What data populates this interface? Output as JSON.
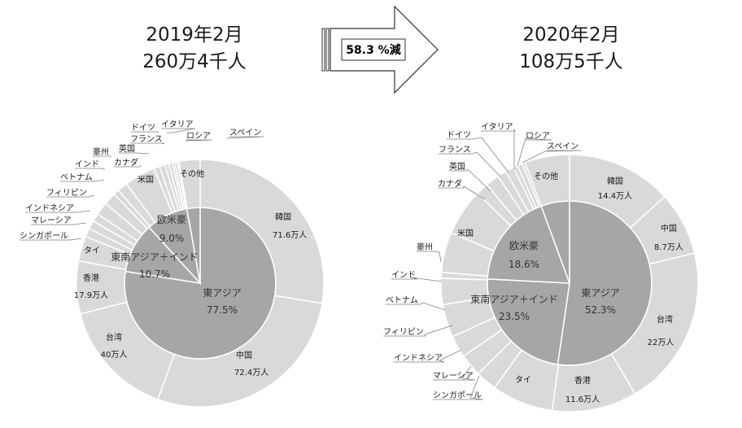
{
  "header": {
    "left_line1": "2019年2月",
    "left_line2": "260万4千人",
    "arrow_label": "58.3 %減",
    "right_line1": "2020年2月",
    "right_line2": "108万5千人"
  },
  "colors": {
    "inner_fill": "#a6a6a6",
    "outer_fill": "#d9d9d9",
    "stroke": "#ffffff",
    "leader": "#7f7f7f"
  },
  "chart_data": [
    {
      "type": "pie",
      "title": "2019年2月",
      "subtitle": "260万4千人",
      "inner": [
        {
          "label": "東アジア",
          "value": 77.5,
          "text": "77.5%"
        },
        {
          "label": "東南アジア＋インド",
          "value": 10.7,
          "text": "10.7%"
        },
        {
          "label": "欧米豪",
          "value": 9.0,
          "text": "9.0%"
        },
        {
          "label": "",
          "value": 2.8
        }
      ],
      "outer": [
        {
          "label": "韓国",
          "value": 71.6,
          "sub": "71.6万人"
        },
        {
          "label": "中国",
          "value": 72.4,
          "sub": "72.4万人"
        },
        {
          "label": "台湾",
          "value": 40.0,
          "sub": "40万人"
        },
        {
          "label": "香港",
          "value": 17.9,
          "sub": "17.9万人"
        },
        {
          "label": "タイ",
          "value": 8.5
        },
        {
          "label": "シンガポール",
          "value": 2.8
        },
        {
          "label": "マレーシア",
          "value": 2.9
        },
        {
          "label": "インドネシア",
          "value": 2.8
        },
        {
          "label": "フィリピン",
          "value": 4.4
        },
        {
          "label": "ベトナム",
          "value": 4.2
        },
        {
          "label": "インド",
          "value": 1.9
        },
        {
          "label": "豪州",
          "value": 3.5
        },
        {
          "label": "米国",
          "value": 10.6
        },
        {
          "label": "カナダ",
          "value": 1.9
        },
        {
          "label": "英国",
          "value": 1.9
        },
        {
          "label": "フランス",
          "value": 1.3
        },
        {
          "label": "ドイツ",
          "value": 1.2
        },
        {
          "label": "イタリア",
          "value": 0.8
        },
        {
          "label": "ロシア",
          "value": 0.9
        },
        {
          "label": "スペイン",
          "value": 0.6
        },
        {
          "label": "その他",
          "value": 7.1
        }
      ]
    },
    {
      "type": "pie",
      "title": "2020年2月",
      "subtitle": "108万5千人",
      "inner": [
        {
          "label": "東アジア",
          "value": 52.3,
          "text": "52.3%"
        },
        {
          "label": "東南アジア＋インド",
          "value": 23.5,
          "text": "23.5%"
        },
        {
          "label": "欧米豪",
          "value": 18.6,
          "text": "18.6%"
        },
        {
          "label": "",
          "value": 5.6
        }
      ],
      "outer": [
        {
          "label": "韓国",
          "value": 14.4,
          "sub": "14.4万人"
        },
        {
          "label": "中国",
          "value": 8.7,
          "sub": "8.7万人"
        },
        {
          "label": "台湾",
          "value": 22.0,
          "sub": "22万人"
        },
        {
          "label": "香港",
          "value": 11.6,
          "sub": "11.6万人"
        },
        {
          "label": "タイ",
          "value": 8.4
        },
        {
          "label": "シンガポール",
          "value": 2.9
        },
        {
          "label": "マレーシア",
          "value": 3.1
        },
        {
          "label": "インドネシア",
          "value": 3.0
        },
        {
          "label": "フィリピン",
          "value": 4.5
        },
        {
          "label": "ベトナム",
          "value": 3.6
        },
        {
          "label": "インド",
          "value": 0.8
        },
        {
          "label": "豪州",
          "value": 5.5
        },
        {
          "label": "米国",
          "value": 6.4
        },
        {
          "label": "カナダ",
          "value": 1.7
        },
        {
          "label": "英国",
          "value": 1.9
        },
        {
          "label": "フランス",
          "value": 1.2
        },
        {
          "label": "ドイツ",
          "value": 1.2
        },
        {
          "label": "イタリア",
          "value": 0.6
        },
        {
          "label": "ロシア",
          "value": 0.7
        },
        {
          "label": "スペイン",
          "value": 0.4
        },
        {
          "label": "その他",
          "value": 6.1
        }
      ]
    }
  ]
}
